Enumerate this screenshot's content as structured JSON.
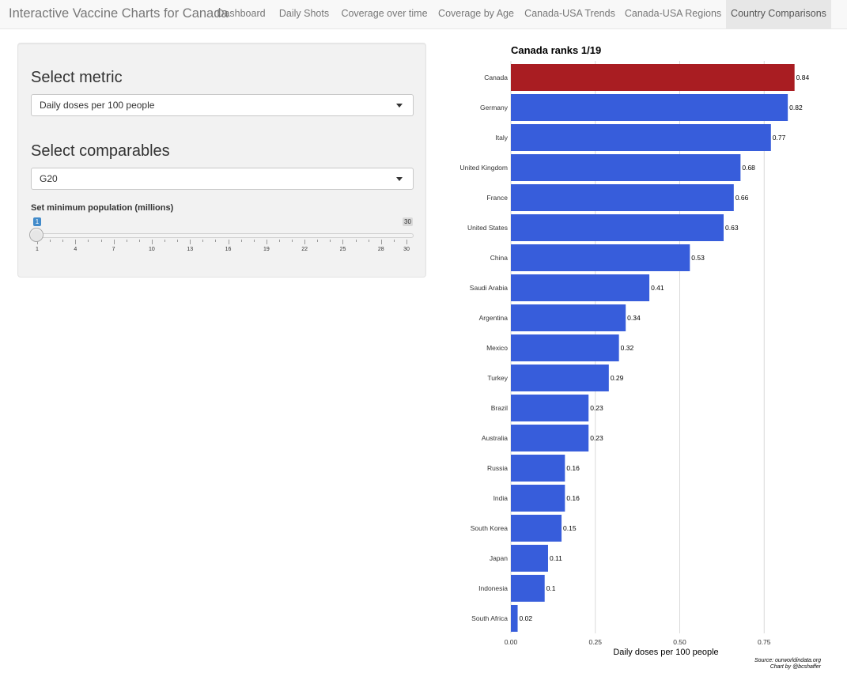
{
  "app": {
    "title": "Interactive Vaccine Charts for Canada"
  },
  "nav": {
    "tabs": [
      {
        "label": "Dashboard"
      },
      {
        "label": "Daily Shots"
      },
      {
        "label": "Coverage over time"
      },
      {
        "label": "Coverage by Age"
      },
      {
        "label": "Canada-USA Trends"
      },
      {
        "label": "Canada-USA Regions"
      },
      {
        "label": "Country Comparisons"
      }
    ],
    "active_tab": "Country Comparisons"
  },
  "sidebar": {
    "metric": {
      "title": "Select metric",
      "value": "Daily doses per 100 people"
    },
    "comparables": {
      "title": "Select comparables",
      "value": "G20"
    },
    "population_slider": {
      "label": "Set minimum population (millions)",
      "min": 1,
      "max": 30,
      "value": 1,
      "min_badge": "1",
      "max_badge": "30",
      "tick_labels": [
        "1",
        "4",
        "7",
        "10",
        "13",
        "16",
        "19",
        "22",
        "25",
        "28",
        "30"
      ]
    }
  },
  "colors": {
    "highlight": "#a91d22",
    "bar": "#375ddb",
    "grid": "#d9d9d9"
  },
  "chart_data": {
    "type": "bar",
    "orientation": "horizontal",
    "title": "Canada ranks 1/19",
    "categories": [
      "Canada",
      "Germany",
      "Italy",
      "United Kingdom",
      "France",
      "United States",
      "China",
      "Saudi Arabia",
      "Argentina",
      "Mexico",
      "Turkey",
      "Brazil",
      "Australia",
      "Russia",
      "India",
      "South Korea",
      "Japan",
      "Indonesia",
      "South Africa"
    ],
    "values": [
      0.84,
      0.82,
      0.77,
      0.68,
      0.66,
      0.63,
      0.53,
      0.41,
      0.34,
      0.32,
      0.29,
      0.23,
      0.23,
      0.16,
      0.16,
      0.15,
      0.11,
      0.1,
      0.02
    ],
    "value_labels": [
      "0.84",
      "0.82",
      "0.77",
      "0.68",
      "0.66",
      "0.63",
      "0.53",
      "0.41",
      "0.34",
      "0.32",
      "0.29",
      "0.23",
      "0.23",
      "0.16",
      "0.16",
      "0.15",
      "0.11",
      "0.1",
      "0.02"
    ],
    "highlight": "Canada",
    "xlabel": "Daily doses per 100 people",
    "ylabel": "",
    "xlim": [
      0,
      0.84
    ],
    "xticks": [
      0,
      0.25,
      0.5,
      0.75
    ],
    "xtick_labels": [
      "0.00",
      "0.25",
      "0.50",
      "0.75"
    ],
    "source": "Source: ourworldindata.org",
    "credit": "Chart by @bcshaffer"
  }
}
